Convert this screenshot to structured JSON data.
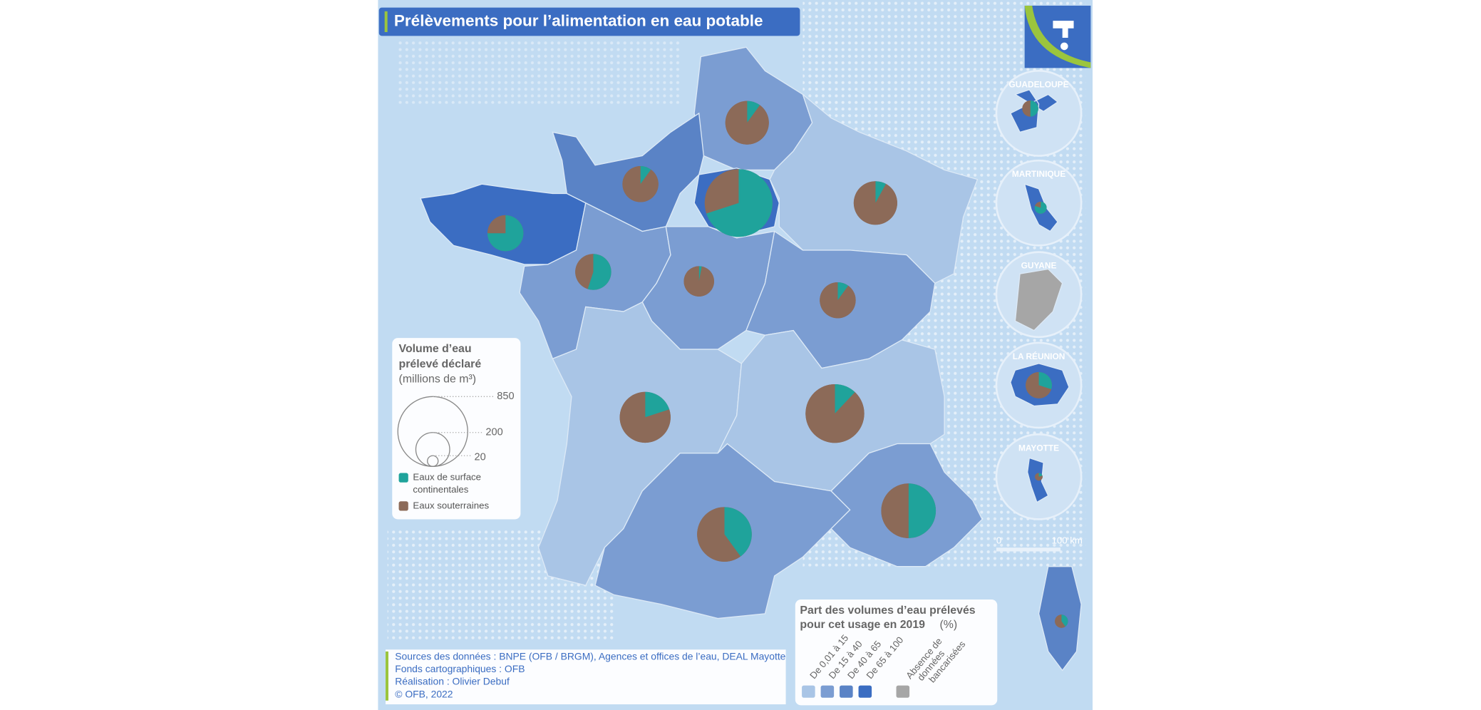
{
  "header": {
    "title": "Prélèvements pour l’alimentation en eau potable"
  },
  "size_legend": {
    "title": [
      "Volume d’eau",
      "prélevé déclaré"
    ],
    "unit": "(millions de m³)",
    "values": [
      850,
      200,
      20
    ]
  },
  "pie_legend": [
    {
      "label": [
        "Eaux de surface",
        "continentales"
      ],
      "color": "#1fa39b"
    },
    {
      "label": [
        "Eaux souterraines"
      ],
      "color": "#8c6a58"
    }
  ],
  "class_legend": {
    "title": [
      "Part des volumes d’eau prélevés",
      "pour cet usage en 2019"
    ],
    "unit": "(%)",
    "classes": [
      {
        "label": "De 0,01 à 15",
        "color": "#a9c5e6"
      },
      {
        "label": "De 15 à 40",
        "color": "#7b9dd2"
      },
      {
        "label": "De 40 à 65",
        "color": "#5a83c6"
      },
      {
        "label": "De 65 à 100",
        "color": "#3b6dc2"
      }
    ],
    "no_data": {
      "label": [
        "Absence de",
        "données",
        "bancarisées"
      ],
      "color": "#a6a6a6"
    }
  },
  "regions": [
    {
      "class": 1,
      "volume": 330,
      "surface_share": 10,
      "ground_share": 90
    },
    {
      "class": 2,
      "volume": 225,
      "surface_share": 10,
      "ground_share": 90
    },
    {
      "class": 3,
      "volume": 800,
      "surface_share": 70,
      "ground_share": 30
    },
    {
      "class": 0,
      "volume": 330,
      "surface_share": 8,
      "ground_share": 92
    },
    {
      "class": 3,
      "volume": 225,
      "surface_share": 75,
      "ground_share": 25
    },
    {
      "class": 1,
      "volume": 225,
      "surface_share": 55,
      "ground_share": 45
    },
    {
      "class": 1,
      "volume": 160,
      "surface_share": 3,
      "ground_share": 97
    },
    {
      "class": 1,
      "volume": 225,
      "surface_share": 10,
      "ground_share": 90
    },
    {
      "class": 0,
      "volume": 450,
      "surface_share": 20,
      "ground_share": 80
    },
    {
      "class": 0,
      "volume": 600,
      "surface_share": 12,
      "ground_share": 88
    },
    {
      "class": 1,
      "volume": 520,
      "surface_share": 40,
      "ground_share": 60
    },
    {
      "class": 1,
      "volume": 520,
      "surface_share": 50,
      "ground_share": 50
    },
    {
      "class": 2,
      "volume": 30,
      "surface_share": 40,
      "ground_share": 60
    },
    {
      "class": 3,
      "volume": 45,
      "surface_share": 50,
      "ground_share": 50
    },
    {
      "class": 3,
      "volume": 25,
      "surface_share": 80,
      "ground_share": 20
    },
    {
      "class": 4
    },
    {
      "class": 3,
      "volume": 120,
      "surface_share": 30,
      "ground_share": 70
    },
    {
      "class": 3,
      "volume": 10,
      "surface_share": 20,
      "ground_share": 80
    }
  ],
  "overseas": [
    "GUADELOUPE",
    "MARTINIQUE",
    "GUYANE",
    "LA RÉUNION",
    "MAYOTTE"
  ],
  "scale": [
    "0",
    "100 km"
  ],
  "sources": [
    "Sources des données : BNPE (OFB / BRGM), Agences et offices de l’eau, DEAL Mayotte",
    "Fonds cartographiques : OFB",
    "Réalisation : Olivier Debuf",
    "© OFB, 2022"
  ]
}
